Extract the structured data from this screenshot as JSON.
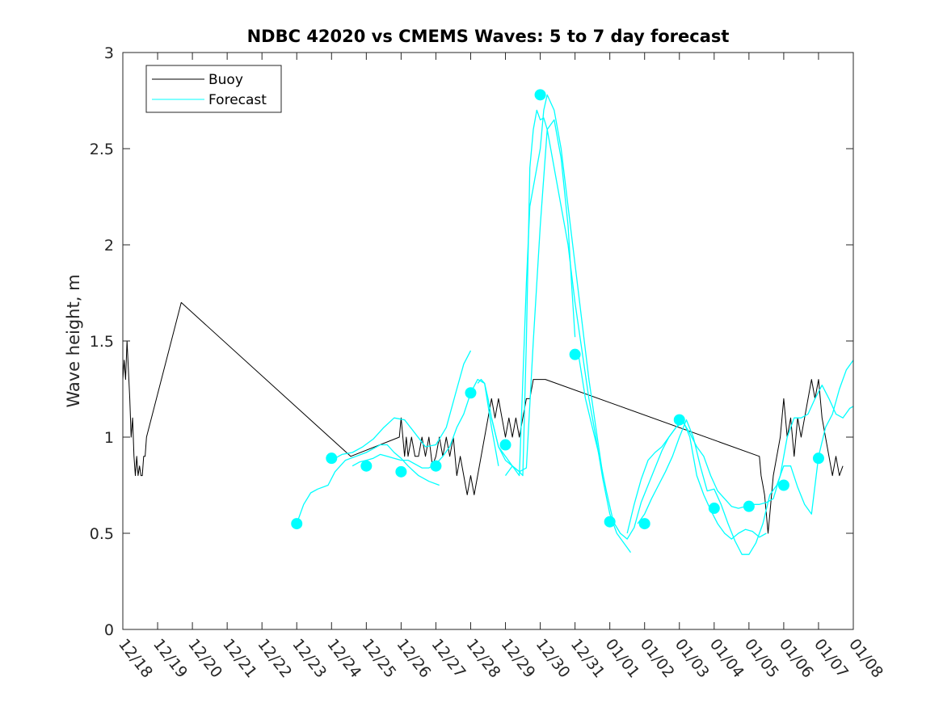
{
  "chart_data": {
    "type": "line",
    "title": "NDBC 42020 vs CMEMS Waves: 5 to 7 day forecast",
    "xlabel": "",
    "ylabel": "Wave height, m",
    "x_tick_labels": [
      "12/18",
      "12/19",
      "12/20",
      "12/21",
      "12/22",
      "12/23",
      "12/24",
      "12/25",
      "12/26",
      "12/27",
      "12/28",
      "12/29",
      "12/30",
      "12/31",
      "01/01",
      "01/02",
      "01/03",
      "01/04",
      "01/05",
      "01/06",
      "01/07",
      "01/08"
    ],
    "xlim": [
      0,
      21
    ],
    "ylim": [
      0,
      3
    ],
    "y_ticks": [
      0,
      0.5,
      1,
      1.5,
      2,
      2.5,
      3
    ],
    "y_tick_labels": [
      "0",
      "0.5",
      "1",
      "1.5",
      "2",
      "2.5",
      "3"
    ],
    "legend": {
      "position": "top-left",
      "entries": [
        {
          "label": "Buoy",
          "color": "#000000"
        },
        {
          "label": "Forecast",
          "color": "#00ffff"
        }
      ]
    },
    "colors": {
      "buoy": "#000000",
      "forecast": "#00ffff",
      "axes": "#262626"
    },
    "series": [
      {
        "name": "Buoy",
        "x": [
          0.0,
          0.04,
          0.08,
          0.12,
          0.16,
          0.2,
          0.24,
          0.28,
          0.32,
          0.36,
          0.4,
          0.44,
          0.48,
          0.52,
          0.56,
          0.6,
          0.64,
          0.68,
          1.68,
          6.55,
          7.95,
          8.0,
          8.1,
          8.15,
          8.2,
          8.3,
          8.4,
          8.5,
          8.6,
          8.7,
          8.8,
          8.9,
          9.0,
          9.1,
          9.2,
          9.3,
          9.4,
          9.5,
          9.6,
          9.7,
          9.8,
          9.9,
          10.0,
          10.1,
          10.2,
          10.3,
          10.4,
          10.5,
          10.6,
          10.7,
          10.8,
          10.9,
          11.0,
          11.1,
          11.2,
          11.3,
          11.4,
          11.5,
          11.6,
          11.7,
          11.8,
          11.9,
          12.0,
          12.1,
          12.15,
          18.3,
          18.35,
          18.4,
          18.45,
          18.5,
          18.55,
          18.6,
          18.65,
          18.7,
          18.8,
          18.9,
          19.0,
          19.1,
          19.2,
          19.3,
          19.4,
          19.5,
          19.6,
          19.7,
          19.8,
          19.9,
          20.0,
          20.1,
          20.2,
          20.3,
          20.4,
          20.5,
          20.6,
          20.7
        ],
        "values": [
          1.3,
          1.4,
          1.3,
          1.5,
          1.35,
          1.2,
          1.0,
          1.1,
          0.9,
          0.8,
          0.9,
          0.8,
          0.85,
          0.8,
          0.8,
          0.9,
          0.9,
          1.0,
          1.7,
          0.9,
          1.0,
          1.1,
          0.9,
          1.0,
          0.9,
          1.0,
          0.9,
          0.9,
          1.0,
          0.9,
          1.0,
          0.85,
          0.9,
          1.0,
          0.9,
          1.0,
          0.9,
          1.0,
          0.8,
          0.9,
          0.8,
          0.7,
          0.8,
          0.7,
          0.8,
          0.9,
          1.0,
          1.1,
          1.2,
          1.1,
          1.2,
          1.1,
          1.0,
          1.1,
          1.0,
          1.1,
          1.0,
          1.1,
          1.2,
          1.2,
          1.3,
          1.3,
          1.3,
          1.3,
          1.3,
          0.9,
          0.8,
          0.75,
          0.7,
          0.6,
          0.5,
          0.6,
          0.7,
          0.8,
          0.9,
          1.0,
          1.2,
          1.0,
          1.1,
          0.9,
          1.1,
          1.0,
          1.1,
          1.2,
          1.3,
          1.2,
          1.3,
          1.1,
          1.0,
          0.9,
          0.8,
          0.9,
          0.8,
          0.85
        ]
      },
      {
        "name": "Forecast",
        "segments": [
          {
            "x": [
              5.0,
              5.2,
              5.4,
              5.6,
              5.9,
              6.1,
              6.4,
              6.7,
              7.0,
              7.2,
              7.4,
              7.6,
              7.8,
              8.0,
              8.2,
              8.5,
              8.8,
              9.1
            ],
            "values": [
              0.55,
              0.65,
              0.71,
              0.73,
              0.75,
              0.82,
              0.88,
              0.9,
              0.92,
              0.94,
              0.96,
              0.96,
              0.92,
              0.89,
              0.85,
              0.8,
              0.77,
              0.75
            ]
          },
          {
            "x": [
              6.0,
              6.3,
              6.6,
              6.9,
              7.2,
              7.5,
              7.8,
              8.1,
              8.4,
              8.7,
              9.0,
              9.3,
              9.6,
              9.8,
              10.0
            ],
            "values": [
              0.88,
              0.91,
              0.92,
              0.95,
              0.99,
              1.05,
              1.1,
              1.09,
              1.02,
              0.95,
              0.96,
              1.05,
              1.25,
              1.38,
              1.45
            ]
          },
          {
            "x": [
              6.6,
              6.8,
              7.0,
              7.2,
              7.4,
              7.6,
              7.8,
              8.0,
              8.2,
              8.4,
              8.6,
              8.8,
              9.0,
              9.2,
              9.4,
              9.6,
              9.8,
              10.0,
              10.2,
              10.4,
              10.6,
              10.8
            ],
            "values": [
              0.85,
              0.87,
              0.88,
              0.89,
              0.91,
              0.9,
              0.89,
              0.88,
              0.88,
              0.86,
              0.84,
              0.84,
              0.86,
              0.9,
              0.95,
              1.05,
              1.12,
              1.23,
              1.3,
              1.28,
              1.05,
              0.85
            ]
          },
          {
            "x": [
              10.2,
              10.3,
              10.4,
              10.5,
              10.6,
              10.8,
              11.0,
              11.2,
              11.4,
              11.6,
              11.7,
              11.8,
              11.9,
              12.0,
              12.1,
              12.2,
              12.4,
              12.6,
              12.8,
              13.0,
              13.2,
              13.4,
              13.6,
              13.8
            ],
            "values": [
              1.28,
              1.3,
              1.28,
              1.2,
              1.1,
              0.95,
              0.9,
              0.85,
              0.8,
              1.8,
              2.2,
              2.3,
              2.4,
              2.5,
              2.7,
              2.78,
              2.7,
              2.5,
              2.2,
              1.9,
              1.6,
              1.3,
              1.05,
              0.8
            ]
          },
          {
            "x": [
              10.6,
              10.8,
              11.0,
              11.2,
              11.4,
              11.5,
              11.6,
              11.7,
              11.8,
              11.9,
              12.0,
              12.1,
              12.2,
              12.4,
              12.6,
              12.8,
              13.0,
              13.2,
              13.4,
              13.6,
              13.8,
              14.0,
              14.2,
              14.4,
              14.6
            ],
            "values": [
              1.1,
              0.95,
              0.88,
              0.85,
              0.82,
              0.8,
              1.5,
              2.4,
              2.6,
              2.7,
              2.65,
              2.66,
              2.6,
              2.4,
              2.2,
              2.0,
              1.7,
              1.45,
              1.2,
              1.0,
              0.78,
              0.6,
              0.5,
              0.45,
              0.4
            ]
          },
          {
            "x": [
              11.0,
              11.2,
              11.4,
              11.6,
              11.8,
              12.0,
              12.2,
              12.4,
              12.6,
              12.8,
              12.9,
              13.0
            ],
            "values": [
              0.8,
              0.85,
              0.82,
              0.84,
              1.5,
              2.1,
              2.6,
              2.65,
              2.45,
              2.1,
              1.8,
              1.52
            ]
          },
          {
            "x": [
              13.1,
              13.3,
              13.5,
              13.7,
              13.9,
              14.1,
              14.3,
              14.5,
              14.7,
              14.9,
              15.1,
              15.3,
              15.5,
              15.7,
              15.9,
              16.1,
              16.3,
              16.5,
              16.7,
              16.9,
              17.1,
              17.3,
              17.5,
              17.7,
              17.9,
              18.1,
              18.3,
              18.5
            ],
            "values": [
              1.43,
              1.2,
              1.05,
              0.9,
              0.72,
              0.56,
              0.5,
              0.47,
              0.53,
              0.66,
              0.75,
              0.84,
              0.93,
              1.0,
              1.05,
              1.09,
              1.0,
              0.8,
              0.7,
              0.62,
              0.55,
              0.5,
              0.47,
              0.5,
              0.52,
              0.51,
              0.48,
              0.5
            ]
          },
          {
            "x": [
              14.5,
              14.7,
              14.9,
              15.1,
              15.3,
              15.5,
              15.7,
              15.9,
              16.1,
              16.3,
              16.5,
              16.7,
              16.9,
              17.1,
              17.3,
              17.5,
              17.7,
              17.9,
              18.1,
              18.3,
              18.5,
              18.7,
              18.9,
              19.1,
              19.3,
              19.5,
              19.7,
              19.9,
              20.1,
              20.3,
              20.5,
              20.7,
              20.9,
              21.0
            ],
            "values": [
              0.5,
              0.65,
              0.78,
              0.88,
              0.92,
              0.95,
              1.0,
              1.05,
              1.08,
              1.02,
              0.95,
              0.9,
              0.8,
              0.72,
              0.68,
              0.64,
              0.63,
              0.64,
              0.65,
              0.65,
              0.66,
              0.68,
              0.8,
              1.0,
              1.1,
              1.1,
              1.12,
              1.2,
              1.27,
              1.2,
              1.12,
              1.1,
              1.15,
              1.16
            ]
          },
          {
            "x": [
              14.8,
              15.0,
              15.2,
              15.4,
              15.6,
              15.8,
              16.0,
              16.2,
              16.4,
              16.6,
              16.8,
              17.0,
              17.2,
              17.4,
              17.6,
              17.8,
              18.0,
              18.2,
              18.4,
              18.6,
              18.8,
              19.0,
              19.2,
              19.4,
              19.6,
              19.8,
              20.0,
              20.2,
              20.4,
              20.6,
              20.8,
              21.0
            ],
            "values": [
              0.55,
              0.6,
              0.68,
              0.75,
              0.82,
              0.9,
              1.0,
              1.09,
              1.0,
              0.85,
              0.72,
              0.73,
              0.65,
              0.55,
              0.46,
              0.39,
              0.39,
              0.45,
              0.55,
              0.7,
              0.75,
              0.85,
              0.85,
              0.74,
              0.65,
              0.6,
              0.9,
              1.05,
              1.12,
              1.25,
              1.35,
              1.4
            ]
          }
        ],
        "markers": {
          "x": [
            5.0,
            6.0,
            7.0,
            8.0,
            9.0,
            10.0,
            11.0,
            12.0,
            13.0,
            14.0,
            15.0,
            16.0,
            17.0,
            18.0,
            19.0,
            20.0
          ],
          "values": [
            0.55,
            0.89,
            0.85,
            0.82,
            0.85,
            1.23,
            0.96,
            2.78,
            1.43,
            0.56,
            0.55,
            1.09,
            0.63,
            0.64,
            0.75,
            0.89
          ]
        }
      }
    ]
  }
}
